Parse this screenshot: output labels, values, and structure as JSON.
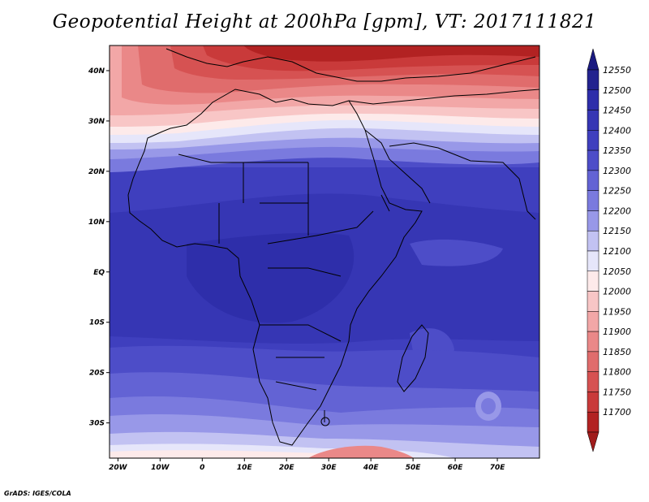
{
  "title": "Geopotential Height at 200hPa [gpm], VT: 2017111821",
  "footer": "GrADS: IGES/COLA",
  "map": {
    "lon_range": [
      -22,
      80
    ],
    "lat_range": [
      -37,
      45
    ],
    "x_ticks": [
      {
        "value": -20,
        "label": "20W"
      },
      {
        "value": -10,
        "label": "10W"
      },
      {
        "value": 0,
        "label": "0"
      },
      {
        "value": 10,
        "label": "10E"
      },
      {
        "value": 20,
        "label": "20E"
      },
      {
        "value": 30,
        "label": "30E"
      },
      {
        "value": 40,
        "label": "40E"
      },
      {
        "value": 50,
        "label": "50E"
      },
      {
        "value": 60,
        "label": "60E"
      },
      {
        "value": 70,
        "label": "70E"
      }
    ],
    "y_ticks": [
      {
        "value": 40,
        "label": "40N"
      },
      {
        "value": 30,
        "label": "30N"
      },
      {
        "value": 20,
        "label": "20N"
      },
      {
        "value": 10,
        "label": "10N"
      },
      {
        "value": 0,
        "label": "EQ"
      },
      {
        "value": -10,
        "label": "10S"
      },
      {
        "value": -20,
        "label": "20S"
      },
      {
        "value": -30,
        "label": "30S"
      }
    ]
  },
  "colorbar": {
    "levels": [
      {
        "label": "12550",
        "color": "#23238f"
      },
      {
        "label": "12500",
        "color": "#2e2eaa"
      },
      {
        "label": "12450",
        "color": "#3636b4"
      },
      {
        "label": "12400",
        "color": "#3f3fbe"
      },
      {
        "label": "12350",
        "color": "#4d4dc8"
      },
      {
        "label": "12300",
        "color": "#6363d4"
      },
      {
        "label": "12250",
        "color": "#7a7ade"
      },
      {
        "label": "12200",
        "color": "#9898e8"
      },
      {
        "label": "12150",
        "color": "#c2c2f2"
      },
      {
        "label": "12100",
        "color": "#e6e6fa"
      },
      {
        "label": "12050",
        "color": "#fdeaea"
      },
      {
        "label": "12000",
        "color": "#f8c6c6"
      },
      {
        "label": "11950",
        "color": "#f2a7a7"
      },
      {
        "label": "11900",
        "color": "#ea8888"
      },
      {
        "label": "11850",
        "color": "#e06c6c"
      },
      {
        "label": "11800",
        "color": "#d65252"
      },
      {
        "label": "11750",
        "color": "#c93a3a"
      },
      {
        "label": "11700",
        "color": "#b22222"
      }
    ],
    "top_arrow_color": "#1a1a80",
    "bottom_arrow_color": "#a01c1c"
  }
}
